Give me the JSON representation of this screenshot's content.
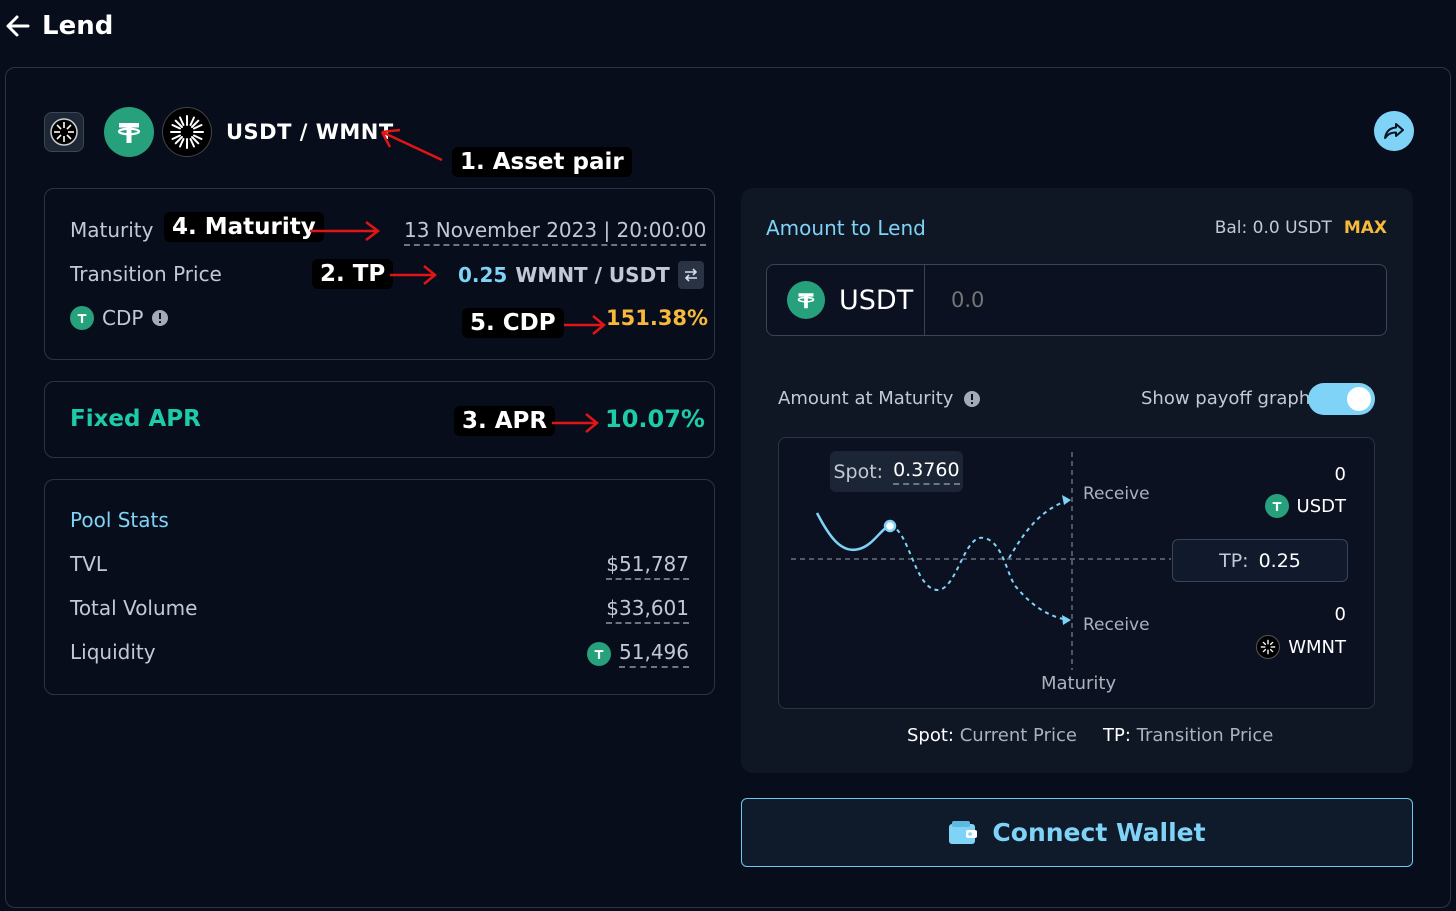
{
  "header": {
    "title": "Lend"
  },
  "pair": {
    "label": "USDT / WMNT"
  },
  "annotations": {
    "asset_pair": "1. Asset pair",
    "tp": "2. TP",
    "apr": "3. APR",
    "maturity": "4. Maturity",
    "cdp": "5. CDP"
  },
  "info": {
    "maturity_label": "Maturity",
    "maturity_value": "13 November 2023 | 20:00:00",
    "tp_label": "Transition Price",
    "tp_value": "0.25",
    "tp_unit": "WMNT / USDT",
    "cdp_label": "CDP",
    "cdp_value": "151.38%"
  },
  "apr": {
    "label": "Fixed APR",
    "value": "10.07%"
  },
  "pool_stats": {
    "title": "Pool Stats",
    "tvl_label": "TVL",
    "tvl_value": "$51,787",
    "volume_label": "Total Volume",
    "volume_value": "$33,601",
    "liquidity_label": "Liquidity",
    "liquidity_value": "51,496"
  },
  "lend": {
    "title": "Amount to Lend",
    "balance": "Bal: 0.0 USDT",
    "max": "MAX",
    "token": "USDT",
    "amount_placeholder": "0.0"
  },
  "maturity_amount": {
    "label": "Amount at Maturity",
    "toggle_label": "Show payoff graph",
    "toggle_on": true
  },
  "graph": {
    "spot_label": "Spot:",
    "spot_value": "0.3760",
    "tp_label": "TP:",
    "tp_value": "0.25",
    "receive_top": "Receive",
    "receive_bottom": "Receive",
    "top_amount": "0",
    "top_token": "USDT",
    "bottom_amount": "0",
    "bottom_token": "WMNT",
    "maturity_label": "Maturity"
  },
  "legend": {
    "spot_key": "Spot:",
    "spot_desc": "Current Price",
    "tp_key": "TP:",
    "tp_desc": "Transition Price"
  },
  "connect": {
    "label": "Connect Wallet"
  },
  "colors": {
    "accent": "#7fd3f7",
    "apr_green": "#1ecba8",
    "cdp_yellow": "#f6b93b",
    "max_yellow": "#f6b93b",
    "usdt_green": "#26a17b",
    "annotation_red": "#e01515"
  },
  "icons": {
    "back": "arrow-left-icon",
    "share": "share-icon",
    "swap": "swap-icon",
    "info": "info-icon",
    "wallet": "wallet-icon"
  }
}
